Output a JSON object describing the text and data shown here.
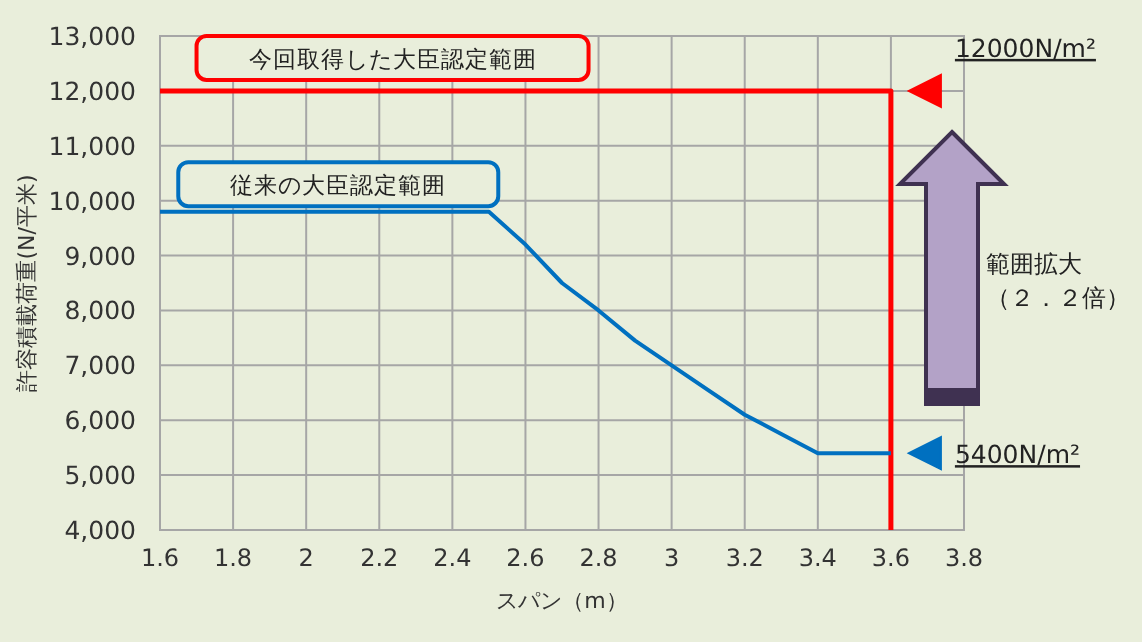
{
  "chart_data": {
    "type": "line",
    "xlabel": "スパン（m）",
    "ylabel": "許容積載荷重(N/平米)",
    "series": [
      {
        "name": "今回取得した大臣認定範囲",
        "color": "#ff0000",
        "x": [
          1.6,
          3.6,
          3.6
        ],
        "values": [
          12000,
          12000,
          4000
        ]
      },
      {
        "name": "従来の大臣認定範囲",
        "color": "#0070c0",
        "x": [
          1.6,
          2.5,
          2.6,
          2.7,
          2.8,
          2.9,
          3.0,
          3.1,
          3.2,
          3.3,
          3.4,
          3.6
        ],
        "values": [
          9800,
          9800,
          9200,
          8500,
          8000,
          7450,
          7000,
          6550,
          6100,
          5750,
          5400,
          5400
        ]
      }
    ],
    "xlim": [
      1.6,
      3.8
    ],
    "xticks": [
      1.6,
      1.8,
      2,
      2.2,
      2.4,
      2.6,
      2.8,
      3,
      3.2,
      3.4,
      3.6,
      3.8
    ],
    "ylim": [
      4000,
      13000
    ],
    "yticks": [
      {
        "value": 4000,
        "label": "4,000"
      },
      {
        "value": 5000,
        "label": "5,000"
      },
      {
        "value": 6000,
        "label": "6,000"
      },
      {
        "value": 7000,
        "label": "7,000"
      },
      {
        "value": 8000,
        "label": "8,000"
      },
      {
        "value": 9000,
        "label": "9,000"
      },
      {
        "value": 10000,
        "label": "10,000"
      },
      {
        "value": 11000,
        "label": "11,000"
      },
      {
        "value": 12000,
        "label": "12,000"
      },
      {
        "value": 13000,
        "label": "13,000"
      }
    ],
    "annotations": [
      {
        "text": "12000N/m²",
        "x": 3.6,
        "y": 12000
      },
      {
        "text": "5400N/m²",
        "x": 3.6,
        "y": 5400
      },
      "範囲拡大",
      "（２．２倍）"
    ],
    "grid": true,
    "legend": false,
    "line_style": "solid",
    "marker": "none"
  }
}
